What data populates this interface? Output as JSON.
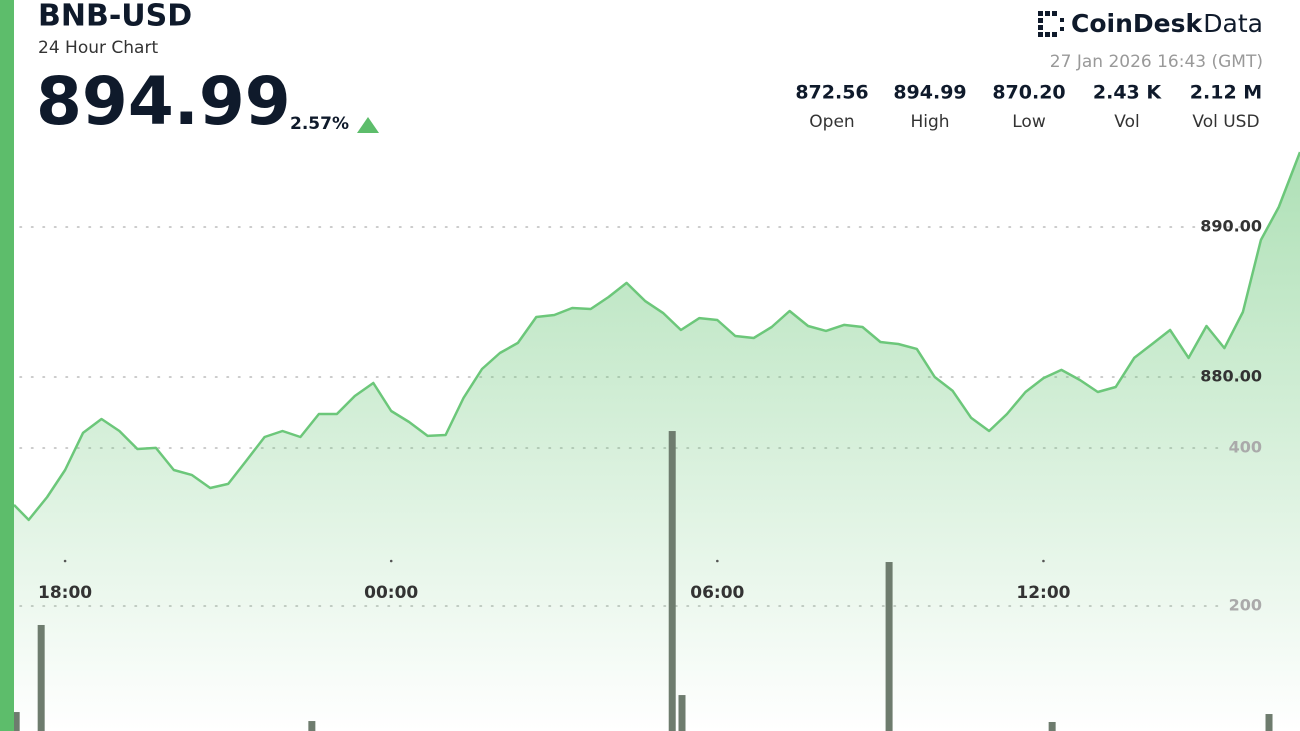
{
  "header": {
    "title": "BNB-USD",
    "subtitle": "24 Hour Chart",
    "price": "894.99",
    "change": "2.57%",
    "logo_bold": "CoinDesk",
    "logo_light": "Data",
    "timestamp": "27 Jan 2026 16:43 (GMT)",
    "stats": [
      {
        "value": "872.56",
        "label": "Open"
      },
      {
        "value": "894.99",
        "label": "High"
      },
      {
        "value": "870.20",
        "label": "Low"
      },
      {
        "value": "2.43 K",
        "label": "Vol"
      },
      {
        "value": "2.12 M",
        "label": "Vol USD"
      }
    ]
  },
  "chart_data": {
    "type": "line",
    "xlim": [
      17.06,
      40.72
    ],
    "xticks": [
      {
        "value": 18,
        "label": "18:00"
      },
      {
        "value": 24,
        "label": "00:00"
      },
      {
        "value": 30,
        "label": "06:00"
      },
      {
        "value": 36,
        "label": "12:00"
      }
    ],
    "ylim": [
      856.4,
      895.8
    ],
    "yticks": [
      {
        "value": 880,
        "label": "880.00"
      },
      {
        "value": 890,
        "label": "890.00"
      }
    ],
    "y2lim": [
      41.8,
      789.9
    ],
    "y2ticks": [
      200,
      400
    ],
    "grid": true,
    "series": [
      {
        "color": "#6cc77a",
        "x": [
          17.06,
          17.33,
          17.67,
          18.0,
          18.33,
          18.67,
          19.0,
          19.33,
          19.67,
          20.0,
          20.33,
          20.67,
          21.0,
          21.33,
          21.67,
          22.0,
          22.33,
          22.67,
          23.0,
          23.33,
          23.67,
          24.0,
          24.33,
          24.67,
          25.0,
          25.33,
          25.67,
          26.0,
          26.33,
          26.67,
          27.0,
          27.33,
          27.67,
          28.0,
          28.33,
          28.67,
          29.0,
          29.33,
          29.67,
          30.0,
          30.33,
          30.67,
          31.0,
          31.33,
          31.67,
          32.0,
          32.33,
          32.67,
          33.0,
          33.33,
          33.67,
          34.0,
          34.33,
          34.67,
          35.0,
          35.33,
          35.67,
          36.0,
          36.33,
          36.67,
          37.0,
          37.33,
          37.67,
          38.0,
          38.33,
          38.67,
          39.0,
          39.33,
          39.67,
          40.0,
          40.33,
          40.72
        ],
        "values": [
          871.47,
          870.47,
          872.0,
          873.8,
          876.27,
          877.2,
          876.4,
          875.2,
          875.27,
          873.8,
          873.47,
          872.6,
          872.87,
          874.4,
          876.0,
          876.4,
          876.0,
          877.53,
          877.53,
          878.73,
          879.6,
          877.73,
          877.0,
          876.07,
          876.13,
          878.6,
          880.53,
          881.6,
          882.27,
          884.0,
          884.13,
          884.6,
          884.53,
          885.33,
          886.27,
          885.07,
          884.27,
          883.13,
          883.93,
          883.8,
          882.73,
          882.6,
          883.33,
          884.4,
          883.4,
          883.07,
          883.47,
          883.33,
          882.33,
          882.2,
          881.87,
          880.0,
          879.07,
          877.27,
          876.4,
          877.53,
          879.0,
          879.93,
          880.47,
          879.8,
          879.0,
          879.33,
          881.27,
          882.2,
          883.13,
          881.27,
          883.4,
          881.93,
          884.33,
          889.13,
          891.33,
          894.99
        ]
      },
      {
        "type": "bar",
        "axis": "y2",
        "color": "#6e7c6e",
        "x": [
          17.1,
          17.56,
          22.54,
          29.17,
          29.35,
          33.16,
          36.16,
          40.15
        ],
        "values": [
          65.8,
          176,
          54.4,
          421.5,
          87.3,
          255.7,
          53.2,
          63.3
        ]
      }
    ]
  }
}
